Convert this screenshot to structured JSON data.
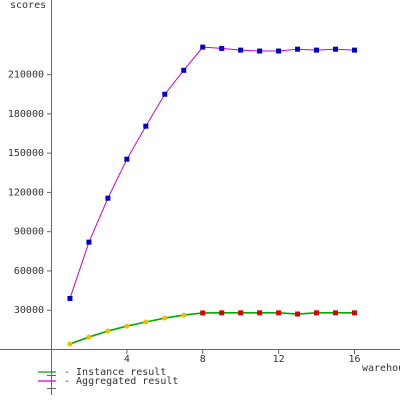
{
  "chart_data": {
    "type": "line",
    "y_label": "scores",
    "x_label": "warehouses",
    "x": [
      1,
      2,
      3,
      4,
      5,
      6,
      7,
      8,
      9,
      10,
      11,
      12,
      13,
      14,
      15,
      16
    ],
    "series": [
      {
        "name": "- Instance result",
        "color": "#00aa00",
        "marker_colors": [
          "#e8c000",
          "#e8c000",
          "#e8c000",
          "#e8c000",
          "#e8c000",
          "#e8c000",
          "#e8c000",
          "#dd0000",
          "#dd0000",
          "#dd0000",
          "#dd0000",
          "#dd0000",
          "#dd0000",
          "#dd0000",
          "#dd0000",
          "#dd0000"
        ],
        "values": [
          4200,
          9500,
          14100,
          17900,
          21000,
          24000,
          26300,
          27900,
          28000,
          28000,
          28000,
          28000,
          27100,
          28000,
          28000,
          28000
        ]
      },
      {
        "name": "- Aggregated result",
        "color": "#cc00cc",
        "marker_color": "#0000cc",
        "values": [
          39000,
          82000,
          115600,
          145400,
          170600,
          195000,
          213300,
          231000,
          230000,
          228700,
          228000,
          228000,
          229400,
          228700,
          229400,
          228700
        ]
      }
    ],
    "xlim": [
      0,
      18.4
    ],
    "xticks": [
      4,
      8,
      12,
      16
    ],
    "ylim": [
      0,
      267000
    ],
    "yticks": [
      30000,
      60000,
      90000,
      120000,
      150000,
      180000,
      210000
    ]
  }
}
